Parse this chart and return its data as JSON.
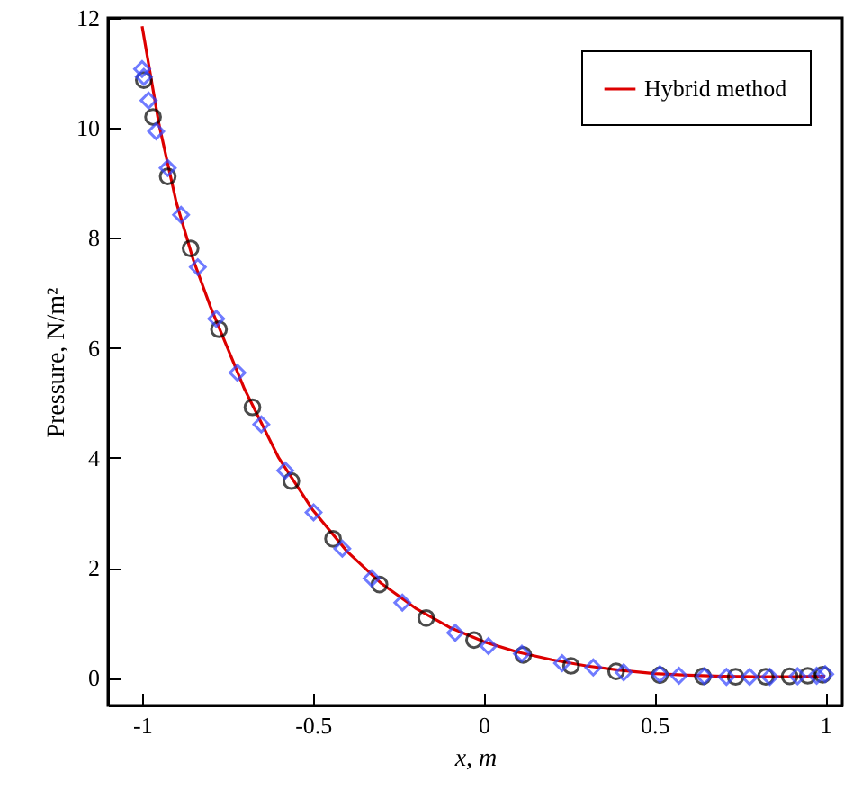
{
  "chart_data": {
    "type": "line",
    "xlabel": "x, m",
    "ylabel": "Pressure, N/m²",
    "xlim": [
      -1.1,
      1.05
    ],
    "ylim": [
      -0.5,
      12
    ],
    "xticks": [
      -1,
      -0.5,
      0,
      0.5,
      1
    ],
    "yticks": [
      0,
      2,
      4,
      6,
      8,
      10,
      12
    ],
    "grid": false,
    "legend": "top right",
    "series": [
      {
        "name": "Hybrid method",
        "type": "line",
        "color": "#dd0000",
        "marker": "none",
        "line_style": "solid",
        "x": [
          -1,
          -0.95,
          -0.9,
          -0.85,
          -0.8,
          -0.7,
          -0.6,
          -0.5,
          -0.4,
          -0.3,
          -0.2,
          -0.1,
          0,
          0.1,
          0.2,
          0.3,
          0.4,
          0.5,
          0.6,
          0.7,
          0.8,
          0.9,
          1
        ],
        "values": [
          11.85,
          10.05,
          8.65,
          7.6,
          6.75,
          5.25,
          4.0,
          3.05,
          2.3,
          1.72,
          1.27,
          0.92,
          0.66,
          0.47,
          0.33,
          0.22,
          0.14,
          0.08,
          0.05,
          0.03,
          0.02,
          0.02,
          0.03
        ]
      },
      {
        "type": "scatter",
        "color": "#000000",
        "marker": "circle",
        "x": [
          -0.995,
          -0.968,
          -0.925,
          -0.858,
          -0.775,
          -0.677,
          -0.563,
          -0.441,
          -0.305,
          -0.168,
          -0.028,
          0.116,
          0.256,
          0.388,
          0.516,
          0.642,
          0.738,
          0.826,
          0.896,
          0.949,
          0.993
        ],
        "values": [
          10.87,
          10.2,
          9.12,
          7.81,
          6.34,
          4.92,
          3.58,
          2.53,
          1.7,
          1.09,
          0.69,
          0.42,
          0.22,
          0.12,
          0.05,
          0.03,
          0.02,
          0.02,
          0.03,
          0.04,
          0.06
        ]
      },
      {
        "type": "scatter",
        "color": "#3344ff",
        "marker": "diamond",
        "x": [
          -1,
          -0.995,
          -0.981,
          -0.959,
          -0.925,
          -0.886,
          -0.837,
          -0.783,
          -0.721,
          -0.651,
          -0.581,
          -0.498,
          -0.414,
          -0.328,
          -0.238,
          -0.083,
          0.014,
          0.112,
          0.23,
          0.321,
          0.41,
          0.516,
          0.572,
          0.646,
          0.711,
          0.779,
          0.838,
          0.919,
          0.975,
          1
        ],
        "values": [
          11.07,
          10.93,
          10.5,
          9.94,
          9.27,
          8.42,
          7.47,
          6.53,
          5.55,
          4.61,
          3.77,
          3.01,
          2.35,
          1.81,
          1.37,
          0.82,
          0.58,
          0.44,
          0.27,
          0.19,
          0.1,
          0.07,
          0.04,
          0.03,
          0.02,
          0.02,
          0.02,
          0.03,
          0.04,
          0.07
        ]
      }
    ]
  }
}
